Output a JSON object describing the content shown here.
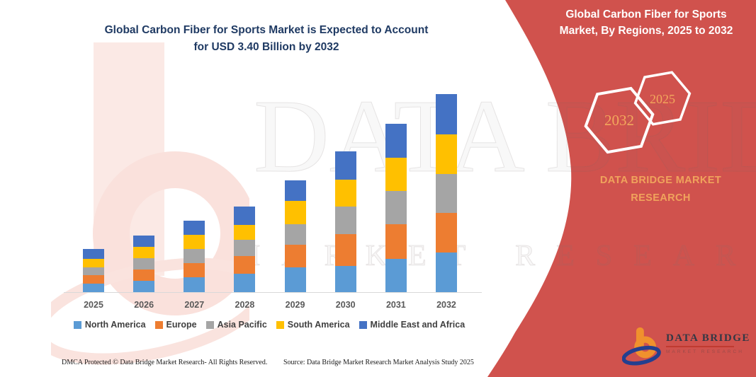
{
  "header": {
    "title_line1": "Global Carbon Fiber for Sports Market is Expected to Account",
    "title_line2": "for USD 3.40 Billion by 2032"
  },
  "panel": {
    "title_line1": "Global Carbon Fiber for Sports",
    "title_line2": "Market, By Regions, 2025 to 2032",
    "hexagon_left_year": "2032",
    "hexagon_right_year": "2025",
    "brand_line1": "DATA BRIDGE MARKET",
    "brand_line2": "RESEARCH"
  },
  "chart_data": {
    "type": "bar",
    "stacked": true,
    "title": "Global Carbon Fiber for Sports Market is Expected to Account for USD 3.40 Billion by 2032",
    "unit": "USD Billion",
    "categories": [
      "2025",
      "2026",
      "2027",
      "2028",
      "2029",
      "2030",
      "2031",
      "2032"
    ],
    "series": [
      {
        "name": "North America",
        "color": "#5B9BD5",
        "values": [
          0.15,
          0.2,
          0.25,
          0.31,
          0.43,
          0.45,
          0.57,
          0.68
        ]
      },
      {
        "name": "Europe",
        "color": "#ED7D31",
        "values": [
          0.14,
          0.19,
          0.24,
          0.3,
          0.39,
          0.55,
          0.6,
          0.68
        ]
      },
      {
        "name": "Asia Pacific",
        "color": "#A5A5A5",
        "values": [
          0.13,
          0.19,
          0.24,
          0.28,
          0.35,
          0.47,
          0.57,
          0.67
        ]
      },
      {
        "name": "South America",
        "color": "#FFC000",
        "values": [
          0.14,
          0.19,
          0.24,
          0.26,
          0.4,
          0.46,
          0.57,
          0.68
        ]
      },
      {
        "name": "Middle East and Africa",
        "color": "#4472C4",
        "values": [
          0.17,
          0.19,
          0.24,
          0.32,
          0.35,
          0.48,
          0.58,
          0.69
        ]
      }
    ],
    "totals_estimated": [
      0.73,
      0.96,
      1.21,
      1.47,
      1.92,
      2.41,
      2.89,
      3.4
    ],
    "ylim": [
      0,
      3.6
    ],
    "gridlines": false,
    "legend_position": "bottom",
    "annotation": "USD 3.40 Billion by 2032"
  },
  "watermark": {
    "line1": "DATA BRIDGE",
    "line2": "MARKET RESEARCH"
  },
  "footer": {
    "left": "DMCA Protected © Data Bridge Market Research-  All Rights Reserved.",
    "right": "Source: Data Bridge Market Research  Market Analysis Study 2025"
  },
  "logo": {
    "wordmark": "DATA BRIDGE",
    "subtext": "MARKET RESEARCH"
  },
  "colors": {
    "panel_red": "#D0524D",
    "title_navy": "#1F3A63",
    "hexagon_text_orange": "#F2A85C",
    "brand_text_orange": "#F0A35C",
    "axis_label_gray": "#595959",
    "legend_text_gray": "#404040",
    "baseline_gray": "#D9D9D9",
    "logo_orange": "#F0912D",
    "logo_navy": "#243F8F",
    "logo_rule_red": "#C03A30"
  }
}
